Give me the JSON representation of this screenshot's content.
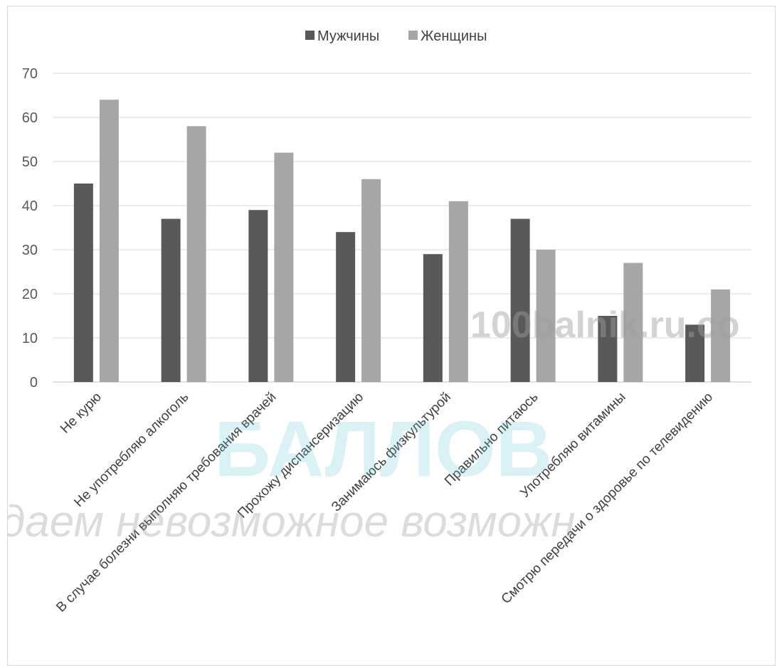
{
  "chart_data": {
    "type": "bar",
    "title": "",
    "xlabel": "",
    "ylabel": "",
    "ylim": [
      0,
      70
    ],
    "yticks": [
      0,
      10,
      20,
      30,
      40,
      50,
      60,
      70
    ],
    "grid": true,
    "legend_position": "top-center",
    "categories": [
      "Не курю",
      "Не употребляю алкоголь",
      "В случае болезни  выполняю требования врачей",
      "Прохожу диспансеризацию",
      "Занимаюсь физкультурой",
      "Правильно питаюсь",
      "Употребляю витамины",
      "Смотрю передачи о здоровье по телевидению"
    ],
    "series": [
      {
        "name": "Мужчины",
        "color": "#595959",
        "values": [
          45,
          37,
          39,
          34,
          29,
          37,
          15,
          13
        ]
      },
      {
        "name": "Женщины",
        "color": "#a6a6a6",
        "values": [
          64,
          58,
          52,
          46,
          41,
          30,
          27,
          21
        ]
      }
    ]
  },
  "watermark": {
    "site": "100balnik.ru.co",
    "brand": "БАЛЛОВ",
    "slogan": "даем невозможное возможн"
  }
}
